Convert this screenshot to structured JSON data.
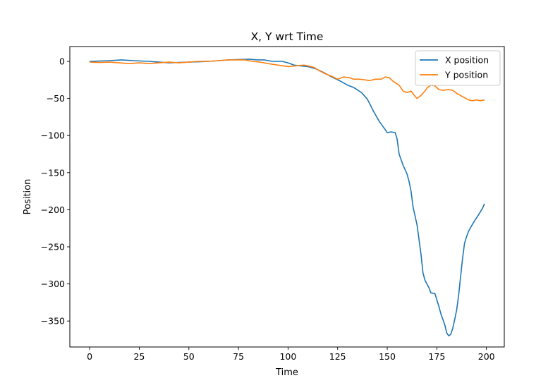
{
  "chart_data": {
    "type": "line",
    "title": "X, Y wrt Time",
    "xlabel": "Time",
    "ylabel": "Position",
    "xlim": [
      -10,
      209
    ],
    "ylim": [
      -385,
      20
    ],
    "xticks": [
      0,
      25,
      50,
      75,
      100,
      125,
      150,
      175,
      200
    ],
    "yticks": [
      0,
      -50,
      -100,
      -150,
      -200,
      -250,
      -300,
      -350
    ],
    "grid": false,
    "legend_position": "top-right",
    "series": [
      {
        "name": "X position",
        "color": "#1f77b4",
        "points": [
          [
            0,
            0
          ],
          [
            5,
            0.5
          ],
          [
            10,
            1
          ],
          [
            16,
            2
          ],
          [
            22,
            1
          ],
          [
            30,
            0
          ],
          [
            35,
            -1
          ],
          [
            40,
            -2
          ],
          [
            45,
            -1.5
          ],
          [
            50,
            -1
          ],
          [
            55,
            -0.5
          ],
          [
            60,
            0
          ],
          [
            65,
            1
          ],
          [
            70,
            2
          ],
          [
            75,
            2.5
          ],
          [
            80,
            3
          ],
          [
            85,
            2
          ],
          [
            88,
            2
          ],
          [
            92,
            0
          ],
          [
            97,
            0
          ],
          [
            100,
            -2
          ],
          [
            103,
            -5
          ],
          [
            106,
            -6
          ],
          [
            110,
            -7
          ],
          [
            114,
            -10
          ],
          [
            118,
            -15
          ],
          [
            122,
            -21
          ],
          [
            126,
            -26
          ],
          [
            130,
            -32
          ],
          [
            133,
            -35
          ],
          [
            137,
            -42
          ],
          [
            140,
            -51
          ],
          [
            143,
            -67
          ],
          [
            146,
            -81
          ],
          [
            149,
            -92
          ],
          [
            150,
            -96
          ],
          [
            152,
            -95
          ],
          [
            154,
            -96
          ],
          [
            155,
            -105
          ],
          [
            156,
            -125
          ],
          [
            158,
            -140
          ],
          [
            160,
            -152
          ],
          [
            161,
            -162
          ],
          [
            162,
            -175
          ],
          [
            163,
            -196
          ],
          [
            165,
            -220
          ],
          [
            166,
            -240
          ],
          [
            167,
            -260
          ],
          [
            168,
            -285
          ],
          [
            169,
            -295
          ],
          [
            170,
            -300
          ],
          [
            171,
            -305
          ],
          [
            172,
            -312
          ],
          [
            174,
            -313
          ],
          [
            176,
            -330
          ],
          [
            177,
            -340
          ],
          [
            179,
            -355
          ],
          [
            180,
            -366
          ],
          [
            181,
            -370
          ],
          [
            182,
            -368
          ],
          [
            183,
            -360
          ],
          [
            184,
            -348
          ],
          [
            185,
            -335
          ],
          [
            186,
            -315
          ],
          [
            187,
            -290
          ],
          [
            188,
            -265
          ],
          [
            189,
            -245
          ],
          [
            190,
            -236
          ],
          [
            191,
            -229
          ],
          [
            192,
            -224
          ],
          [
            194,
            -215
          ],
          [
            196,
            -207
          ],
          [
            198,
            -198
          ],
          [
            199,
            -192
          ]
        ]
      },
      {
        "name": "Y position",
        "color": "#ff7f0e",
        "points": [
          [
            0,
            -1
          ],
          [
            5,
            -1.5
          ],
          [
            10,
            -1
          ],
          [
            15,
            -2
          ],
          [
            20,
            -3
          ],
          [
            25,
            -2
          ],
          [
            30,
            -3
          ],
          [
            35,
            -2
          ],
          [
            40,
            -1
          ],
          [
            45,
            -2
          ],
          [
            50,
            -1
          ],
          [
            55,
            0
          ],
          [
            60,
            0
          ],
          [
            65,
            1
          ],
          [
            70,
            2
          ],
          [
            75,
            2
          ],
          [
            78,
            2
          ],
          [
            82,
            0
          ],
          [
            86,
            -1
          ],
          [
            90,
            -3
          ],
          [
            95,
            -5
          ],
          [
            100,
            -7
          ],
          [
            104,
            -6
          ],
          [
            108,
            -5
          ],
          [
            110,
            -6
          ],
          [
            113,
            -8
          ],
          [
            116,
            -13
          ],
          [
            119,
            -17
          ],
          [
            122,
            -20
          ],
          [
            125,
            -24
          ],
          [
            128,
            -21
          ],
          [
            131,
            -22
          ],
          [
            133,
            -24
          ],
          [
            136,
            -24
          ],
          [
            139,
            -25
          ],
          [
            141,
            -26
          ],
          [
            144,
            -24
          ],
          [
            147,
            -24
          ],
          [
            149,
            -21
          ],
          [
            151,
            -22
          ],
          [
            153,
            -27
          ],
          [
            156,
            -32
          ],
          [
            158,
            -40
          ],
          [
            160,
            -42
          ],
          [
            162,
            -40
          ],
          [
            164,
            -47
          ],
          [
            165,
            -50
          ],
          [
            167,
            -46
          ],
          [
            169,
            -40
          ],
          [
            170,
            -36
          ],
          [
            172,
            -32
          ],
          [
            174,
            -33
          ],
          [
            176,
            -38
          ],
          [
            178,
            -39
          ],
          [
            181,
            -38
          ],
          [
            183,
            -39
          ],
          [
            185,
            -43
          ],
          [
            187,
            -46
          ],
          [
            189,
            -49
          ],
          [
            191,
            -52
          ],
          [
            193,
            -53
          ],
          [
            195,
            -52
          ],
          [
            197,
            -53
          ],
          [
            199,
            -52
          ]
        ]
      }
    ]
  }
}
